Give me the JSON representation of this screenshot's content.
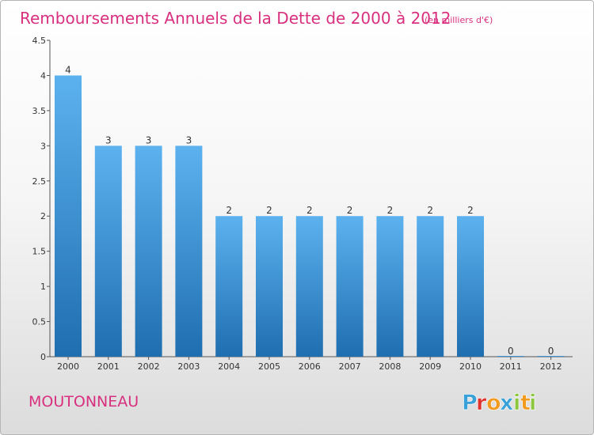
{
  "chart_data": {
    "type": "bar",
    "title": "Remboursements Annuels de la Dette de 2000 à 2012",
    "subtitle": "(en milliers d'€)",
    "categories": [
      "2000",
      "2001",
      "2002",
      "2003",
      "2004",
      "2005",
      "2006",
      "2007",
      "2008",
      "2009",
      "2010",
      "2011",
      "2012"
    ],
    "values": [
      4,
      3,
      3,
      3,
      2,
      2,
      2,
      2,
      2,
      2,
      2,
      0,
      0
    ],
    "bar_labels": [
      "4",
      "3",
      "3",
      "3",
      "2",
      "2",
      "2",
      "2",
      "2",
      "2",
      "2",
      "0",
      "0"
    ],
    "yticks": [
      "0",
      "0.5",
      "1",
      "1.5",
      "2",
      "2.5",
      "3",
      "3.5",
      "4",
      "4.5"
    ],
    "ylim": [
      0,
      4.5
    ],
    "xlabel": "",
    "ylabel": "",
    "bar_color": "#3f95d8",
    "title_color": "#d8307f"
  },
  "commune": "MOUTONNEAU",
  "logo": {
    "letters": [
      "P",
      "r",
      "o",
      "x",
      "i",
      "t",
      "i"
    ],
    "colors": [
      "#3aa0d8",
      "#e0312c",
      "#f29a1e",
      "#3aa0d8",
      "#8cc63f",
      "#f29a1e",
      "#8cc63f"
    ]
  }
}
